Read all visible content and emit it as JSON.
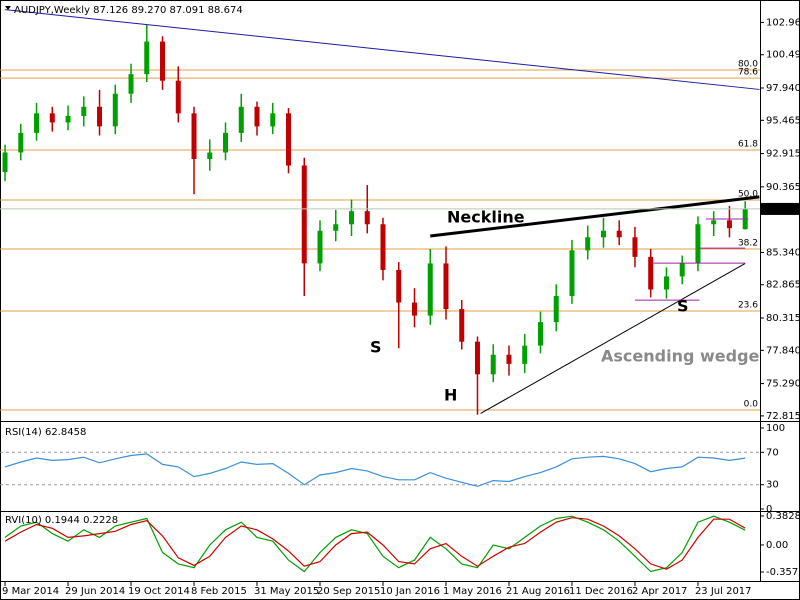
{
  "chart_data": [
    {
      "type": "candlestick",
      "title": "AUDJPY,Weekly  87.126 89.270 87.091 88.674",
      "up_color": "#00a000",
      "down_color": "#c00000",
      "open": [
        91.5,
        93.0,
        94.5,
        96.0,
        95.3,
        95.8,
        96.5,
        95.0,
        97.5,
        99.0,
        101.5,
        98.5,
        96.0,
        92.5,
        93.0,
        94.5,
        96.5,
        95.0,
        96.0,
        92.0,
        84.5,
        87.0,
        87.5,
        88.5,
        87.5,
        84.0,
        81.5,
        80.5,
        84.5,
        81.0,
        78.5,
        76.0,
        77.5,
        76.8,
        78.2,
        80.0,
        82.0,
        85.5,
        86.5,
        87.0,
        86.5,
        85.0,
        82.5,
        83.5,
        84.5,
        87.5,
        87.8,
        87.126
      ],
      "high": [
        93.6,
        95.2,
        96.8,
        96.5,
        96.6,
        97.3,
        97.8,
        98.2,
        99.8,
        102.8,
        101.9,
        99.6,
        96.5,
        94.0,
        95.3,
        97.5,
        96.9,
        96.8,
        96.4,
        92.6,
        87.8,
        88.6,
        89.4,
        90.5,
        88.0,
        84.6,
        82.6,
        85.6,
        85.8,
        81.7,
        78.9,
        78.3,
        78.2,
        79.1,
        80.8,
        82.9,
        86.3,
        87.4,
        88.0,
        87.8,
        87.3,
        85.6,
        84.2,
        85.1,
        88.1,
        88.5,
        88.9,
        89.27
      ],
      "low": [
        90.8,
        92.4,
        93.9,
        94.6,
        94.7,
        95.0,
        94.3,
        94.4,
        96.8,
        98.4,
        97.8,
        95.3,
        89.8,
        91.6,
        92.4,
        93.8,
        94.3,
        94.4,
        91.4,
        82.0,
        83.9,
        86.2,
        86.6,
        86.8,
        83.2,
        78.0,
        79.6,
        79.8,
        80.2,
        77.9,
        72.9,
        75.4,
        75.9,
        76.1,
        77.6,
        79.3,
        81.4,
        84.8,
        85.7,
        85.9,
        84.2,
        81.9,
        81.8,
        82.9,
        83.9,
        86.6,
        86.5,
        87.091
      ],
      "close": [
        93.0,
        94.5,
        96.0,
        95.3,
        95.8,
        96.5,
        95.0,
        97.5,
        99.0,
        101.5,
        98.5,
        96.0,
        92.5,
        93.0,
        94.5,
        96.5,
        95.0,
        96.0,
        92.0,
        84.5,
        87.0,
        87.5,
        88.5,
        87.5,
        84.0,
        81.5,
        80.5,
        84.5,
        81.0,
        78.5,
        76.0,
        77.5,
        76.8,
        78.2,
        80.0,
        82.0,
        85.5,
        86.5,
        87.0,
        86.5,
        85.0,
        82.5,
        83.5,
        84.5,
        87.5,
        87.8,
        87.2,
        88.674
      ],
      "ylim": [
        72.5,
        104.3
      ],
      "yticks": [
        102.965,
        {
          "value": 100.49,
          "label": "100.490"
        },
        {
          "value": 97.94,
          "label": "97.940"
        },
        95.465,
        92.915,
        90.365,
        {
          "value": 85.34,
          "label": "85.340"
        },
        82.865,
        80.315,
        {
          "value": 77.84,
          "label": "77.840"
        },
        {
          "value": 75.29,
          "label": "75.290"
        },
        72.815
      ],
      "grid": false,
      "fib_levels": [
        {
          "level": "80.0",
          "price": 99.32
        },
        {
          "level": "78.6",
          "price": 98.7
        },
        {
          "level": "61.8",
          "price": 93.19
        },
        {
          "level": "50.0",
          "price": 89.36
        },
        {
          "level": "38.2",
          "price": 85.6
        },
        {
          "level": "23.6",
          "price": 80.85
        },
        {
          "level": "0.0",
          "price": 73.27
        }
      ],
      "fib_color": "#e0a040",
      "trendlines": [
        {
          "x": [
            0,
            47.9
          ],
          "y": [
            103.95,
            97.83
          ],
          "color": "#1a1aaa",
          "thick": false
        },
        {
          "x": [
            27,
            47.9
          ],
          "y": [
            86.6,
            89.6
          ],
          "color": "#000000",
          "thick": true
        },
        {
          "x": [
            30.2,
            47
          ],
          "y": [
            73.0,
            84.5
          ],
          "color": "#000000",
          "thick": false
        },
        {
          "x": [
            41.1,
            47
          ],
          "y": [
            84.52,
            84.52
          ],
          "color": "#a020a0",
          "thick": false
        },
        {
          "x": [
            40,
            44.1
          ],
          "y": [
            81.69,
            81.69
          ],
          "color": "#a020a0",
          "thick": false
        },
        {
          "x": [
            44.1,
            47
          ],
          "y": [
            85.67,
            85.67
          ],
          "color": "#a020a0",
          "thick": false
        },
        {
          "x": [
            44.5,
            47.2
          ],
          "y": [
            87.9,
            87.9
          ],
          "color": "#a020a0",
          "thick": false
        }
      ],
      "annotations": [
        "Neckline",
        "S",
        "H",
        "S",
        "Ascending wedge"
      ]
    },
    {
      "type": "line",
      "title": "RSI(14) 62.8458",
      "series": [
        {
          "color": "#3a8fd8",
          "values": [
            52,
            58,
            63,
            60,
            61,
            64,
            57,
            62,
            66,
            68,
            55,
            52,
            40,
            44,
            50,
            58,
            55,
            56,
            44,
            30,
            42,
            45,
            50,
            47,
            40,
            36,
            36,
            45,
            38,
            33,
            28,
            35,
            34,
            40,
            45,
            52,
            62,
            64,
            65,
            62,
            56,
            46,
            50,
            52,
            64,
            63,
            60,
            62.8458
          ]
        }
      ],
      "ylim": [
        0,
        100
      ],
      "yticks": [
        100,
        70,
        30,
        0
      ],
      "grid": true
    },
    {
      "type": "line",
      "title": "RVI(10) 0.1944 0.2228",
      "series": [
        {
          "color": "#00a000",
          "values": [
            0.1,
            0.25,
            0.3,
            0.15,
            0.05,
            0.2,
            0.1,
            0.25,
            0.3,
            0.35,
            -0.1,
            -0.25,
            -0.3,
            0.0,
            0.2,
            0.3,
            0.1,
            0.05,
            -0.2,
            -0.35,
            -0.1,
            0.1,
            0.2,
            0.15,
            -0.15,
            -0.3,
            -0.2,
            0.1,
            -0.05,
            -0.25,
            -0.3,
            0.0,
            -0.05,
            0.1,
            0.25,
            0.35,
            0.38,
            0.3,
            0.2,
            0.05,
            -0.15,
            -0.35,
            -0.3,
            -0.1,
            0.3,
            0.38,
            0.3,
            0.1944
          ]
        },
        {
          "color": "#d00000",
          "values": [
            0.05,
            0.17,
            0.27,
            0.22,
            0.1,
            0.12,
            0.15,
            0.18,
            0.27,
            0.32,
            0.12,
            -0.17,
            -0.27,
            -0.15,
            0.1,
            0.25,
            0.2,
            0.08,
            -0.08,
            -0.28,
            -0.22,
            0.0,
            0.15,
            0.17,
            0.0,
            -0.22,
            -0.25,
            -0.05,
            0.02,
            -0.15,
            -0.28,
            -0.15,
            -0.03,
            0.02,
            0.17,
            0.3,
            0.36,
            0.34,
            0.25,
            0.12,
            -0.05,
            -0.25,
            -0.32,
            -0.2,
            0.1,
            0.34,
            0.34,
            0.2228
          ]
        }
      ],
      "ylim": [
        -0.436,
        0.422
      ],
      "yticks": [
        0.3828,
        {
          "value": 0,
          "label": "0.00"
        },
        -0.357
      ],
      "grid": false,
      "xlim": [
        -0.32,
        47.94
      ],
      "xticks": [
        {
          "value": 0,
          "label": "9 Mar 2014"
        },
        {
          "value": 4,
          "label": "29 Jun 2014"
        },
        {
          "value": 8,
          "label": "19 Oct 2014"
        },
        {
          "value": 12,
          "label": "8 Feb 2015"
        },
        {
          "value": 16,
          "label": "31 May 2015"
        },
        {
          "value": 20,
          "label": "20 Sep 2015"
        },
        {
          "value": 24,
          "label": "10 Jan 2016"
        },
        {
          "value": 28,
          "label": "1 May 2016"
        },
        {
          "value": 32,
          "label": "21 Aug 2016"
        },
        {
          "value": 36,
          "label": "11 Dec 2016"
        },
        {
          "value": 40,
          "label": "2 Apr 2017"
        },
        {
          "value": 44,
          "label": "23 Jul 2017"
        }
      ]
    }
  ]
}
